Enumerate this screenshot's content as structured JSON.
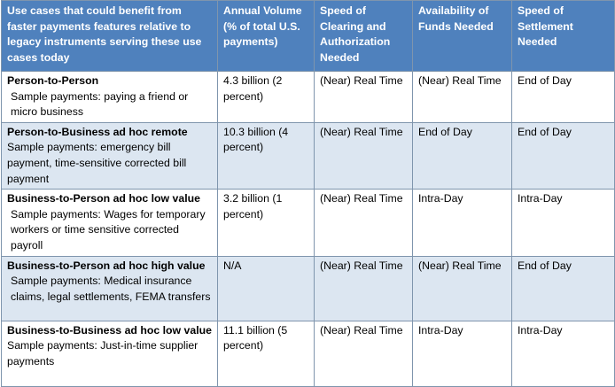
{
  "table": {
    "headers": [
      "Use cases that could benefit from faster payments features relative to legacy instruments serving these use cases today",
      "Annual Volume (% of total U.S. payments)",
      "Speed of Clearing and Authorization Needed",
      "Availability of Funds Needed",
      "Speed of Settlement Needed"
    ],
    "rows": [
      {
        "title": "Person-to-Person",
        "sample": "Sample payments: paying a friend or micro business",
        "volume": "4.3 billion (2 percent)",
        "clearing": "(Near) Real Time",
        "funds": "(Near) Real Time",
        "settlement": "End of Day"
      },
      {
        "title": "Person-to-Business ad hoc remote",
        "sample": "Sample payments: emergency bill payment, time-sensitive corrected bill payment",
        "volume": "10.3 billion (4 percent)",
        "clearing": "(Near) Real Time",
        "funds": "End of Day",
        "settlement": "End of Day"
      },
      {
        "title": "Business-to-Person ad hoc low value",
        "sample": "Sample payments: Wages for temporary workers or time sensitive corrected payroll",
        "volume": "3.2 billion (1 percent)",
        "clearing": "(Near) Real Time",
        "funds": "Intra-Day",
        "settlement": "Intra-Day"
      },
      {
        "title": "Business-to-Person ad hoc high value",
        "sample": "Sample payments: Medical insurance claims, legal settlements, FEMA transfers",
        "volume": "N/A",
        "clearing": "(Near) Real Time",
        "funds": "(Near) Real Time",
        "settlement": "End of Day"
      },
      {
        "title": "Business-to-Business ad hoc low value",
        "sample": "Sample payments: Just-in-time supplier payments",
        "volume": "11.1 billion (5 percent)",
        "clearing": "(Near) Real Time",
        "funds": "Intra-Day",
        "settlement": "Intra-Day"
      }
    ]
  }
}
